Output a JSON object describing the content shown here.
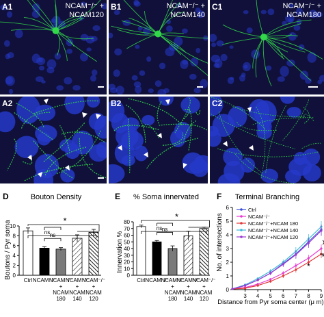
{
  "panels_top": [
    {
      "label": "A1",
      "line1": "NCAM⁻/⁻ +",
      "line2": "NCAM120"
    },
    {
      "label": "B1",
      "line1": "NCAM⁻/⁻ +",
      "line2": "NCAM140"
    },
    {
      "label": "C1",
      "line1": "NCAM⁻/⁻ +",
      "line2": "NCAM180"
    }
  ],
  "panels_mid": [
    {
      "label": "A2"
    },
    {
      "label": "B2"
    },
    {
      "label": "C2"
    }
  ],
  "colors": {
    "micro_bg": "#10103a",
    "nuclei": "#2438c8",
    "fibers": "#33d84a",
    "ctrl": "#3a4ed6",
    "ncam_ko": "#e63bd0",
    "ncam180": "#e03a3a",
    "ncam140": "#3ab8d8",
    "ncam120": "#9a3ad0"
  },
  "chart_data": [
    {
      "panel": "D",
      "type": "bar",
      "title": "Bouton Density",
      "ylabel": "Boutons / Pyr soma",
      "ylim": [
        0,
        10
      ],
      "yticks": [
        "0",
        "2",
        "4",
        "6",
        "8",
        "10"
      ],
      "categories": [
        "Ctrl",
        "NCAM⁻/⁻",
        "NCAM⁻/⁻ + NCAM 180",
        "NCAM⁻/⁻ + NCAM 140",
        "NCAM⁻/⁻ + NCAM 120"
      ],
      "cat_lines": [
        [
          "Ctrl"
        ],
        [
          "NCAM⁻/⁻"
        ],
        [
          "NCAM⁻/⁻",
          "+",
          "NCAM",
          "180"
        ],
        [
          "NCAM⁻/⁻",
          "+",
          "NCAM",
          "140"
        ],
        [
          "NCAM⁻/⁻",
          "+",
          "NCAM",
          "120"
        ]
      ],
      "values": [
        9.0,
        5.5,
        5.3,
        7.5,
        8.7
      ],
      "errors": [
        0.6,
        0.3,
        0.3,
        0.7,
        0.6
      ],
      "fills": [
        "white",
        "black",
        "gray",
        "hatch-sparse",
        "hatch-dense"
      ],
      "sig_ns_1": "ns",
      "sig_ns_2": "ns",
      "sig_star": "*"
    },
    {
      "panel": "E",
      "type": "bar",
      "title": "% Soma innervated",
      "ylabel": "Innervation %",
      "ylim": [
        0,
        80
      ],
      "yticks": [
        "0",
        "10",
        "20",
        "30",
        "40",
        "50",
        "60",
        "70",
        "80"
      ],
      "categories": [
        "Ctrl",
        "NCAM⁻/⁻",
        "NCAM⁻/⁻ + NCAM 180",
        "NCAM⁻/⁻ + NCAM 140",
        "NCAM⁻/⁻ + NCAM 120"
      ],
      "cat_lines": [
        [
          "Ctrl"
        ],
        [
          "NCAM⁻/⁻"
        ],
        [
          "NCAM⁻/⁻",
          "+",
          "NCAM",
          "180"
        ],
        [
          "NCAM⁻/⁻",
          "+",
          "NCAM",
          "140"
        ],
        [
          "NCAM⁻/⁻",
          "+",
          "NCAM",
          "120"
        ]
      ],
      "values": [
        73,
        50,
        40,
        59,
        70
      ],
      "errors": [
        2,
        2,
        4,
        7,
        2
      ],
      "fills": [
        "white",
        "black",
        "gray",
        "hatch-sparse",
        "hatch-dense"
      ],
      "sig_ns_1": "ns",
      "sig_ns_2": "ns",
      "sig_star": "*"
    },
    {
      "panel": "F",
      "type": "line",
      "title": "Terminal Branching",
      "xlabel": "Distance from Pyr soma center (μ m)",
      "ylabel": "No. of intersections",
      "x": [
        2,
        3,
        4,
        5,
        6,
        7,
        8,
        9
      ],
      "xlim": [
        2,
        9
      ],
      "ylim": [
        0,
        6
      ],
      "xticks": [
        "3",
        "4",
        "5",
        "6",
        "7",
        "8",
        "9"
      ],
      "yticks": [
        "0",
        "1",
        "2",
        "3",
        "4",
        "5",
        "6"
      ],
      "series": [
        {
          "name": "Ctrl",
          "values": [
            0.05,
            0.3,
            0.7,
            1.2,
            1.9,
            2.6,
            3.5,
            4.4
          ],
          "errors": [
            0.05,
            0.1,
            0.1,
            0.15,
            0.2,
            0.3,
            0.35,
            0.4
          ]
        },
        {
          "name": "NCAM⁻/⁻",
          "values": [
            0.05,
            0.15,
            0.4,
            0.75,
            1.2,
            1.75,
            2.3,
            3.0
          ],
          "errors": [
            0.05,
            0.05,
            0.1,
            0.1,
            0.15,
            0.2,
            0.25,
            0.3
          ]
        },
        {
          "name": "NCAM⁻/⁻+NCAM 180",
          "values": [
            0.05,
            0.1,
            0.3,
            0.6,
            1.0,
            1.45,
            2.0,
            2.6
          ],
          "errors": [
            0.05,
            0.05,
            0.1,
            0.1,
            0.15,
            0.2,
            0.25,
            0.3
          ]
        },
        {
          "name": "NCAM⁻/⁻+NCAM 140",
          "values": [
            0.05,
            0.35,
            0.8,
            1.35,
            2.0,
            2.8,
            3.7,
            4.6
          ],
          "errors": [
            0.05,
            0.1,
            0.1,
            0.15,
            0.2,
            0.3,
            0.35,
            0.4
          ]
        },
        {
          "name": "NCAM⁻/⁻+NCAM 120",
          "values": [
            0.05,
            0.3,
            0.7,
            1.2,
            1.85,
            2.55,
            3.4,
            4.3
          ],
          "errors": [
            0.05,
            0.1,
            0.1,
            0.15,
            0.2,
            0.3,
            0.35,
            0.4
          ]
        }
      ],
      "sig_star_1": "*",
      "sig_star_2": "*"
    }
  ]
}
